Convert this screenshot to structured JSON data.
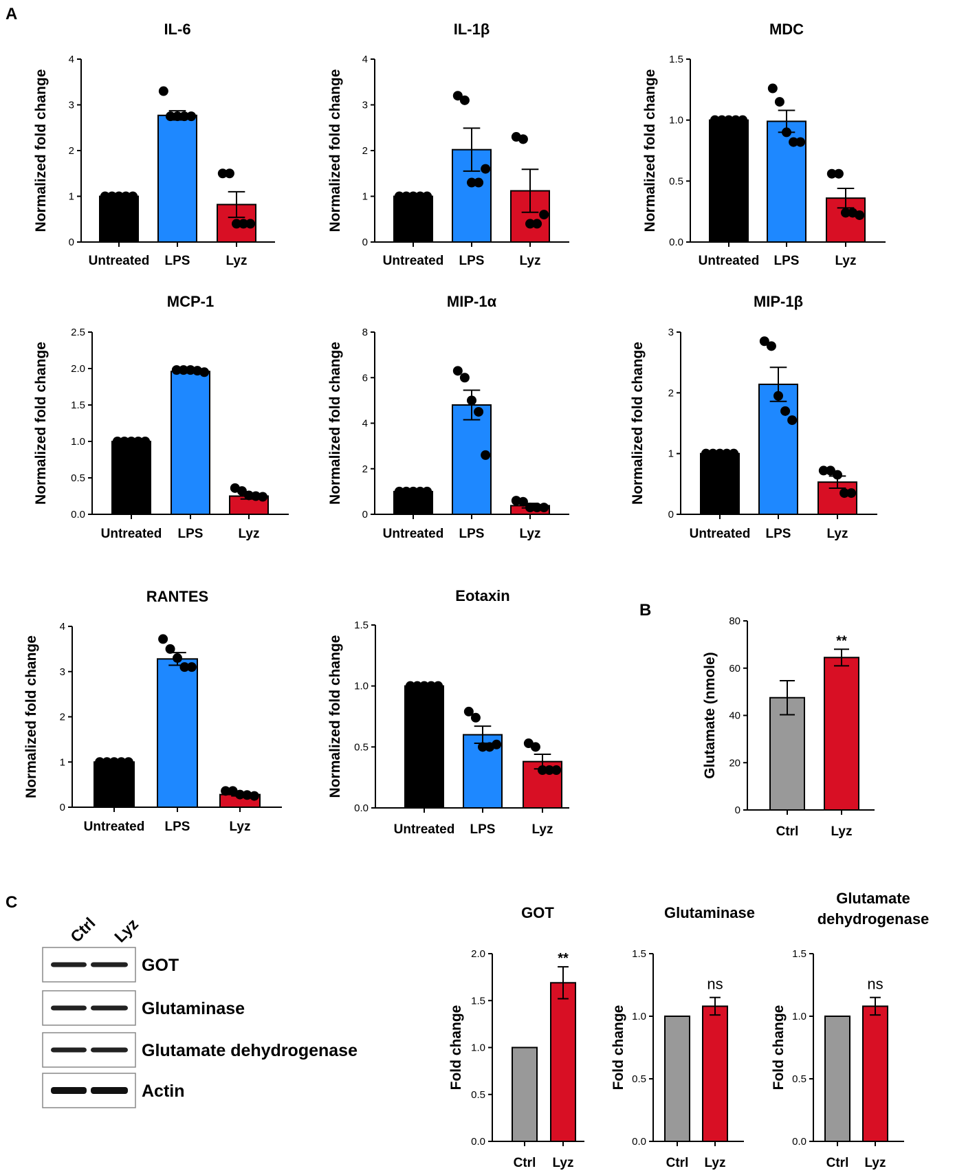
{
  "panel_labels": {
    "a": "A",
    "b": "B",
    "c": "C"
  },
  "colors": {
    "untreated": "#000000",
    "lps": "#1e88ff",
    "lyz": "#d80f24",
    "ctrl": "#999999"
  },
  "chart_data": [
    {
      "type": "bar",
      "panel": "A",
      "title": "IL-6",
      "ylabel": "Normalized fold change",
      "ylim": [
        0,
        4
      ],
      "yticks": [
        "0",
        "1",
        "2",
        "3",
        "4"
      ],
      "categories": [
        "Untreated",
        "LPS",
        "Lyz"
      ],
      "values": [
        1.0,
        2.77,
        0.82
      ],
      "errors": [
        0,
        0.1,
        0.28
      ],
      "points": [
        [
          1,
          1,
          1,
          1,
          1
        ],
        [
          3.3,
          2.75,
          2.75,
          2.75,
          2.75
        ],
        [
          1.5,
          1.5,
          0.4,
          0.4,
          0.4
        ]
      ]
    },
    {
      "type": "bar",
      "panel": "A",
      "title": "IL-1β",
      "ylabel": "Normalized fold change",
      "ylim": [
        0,
        4
      ],
      "yticks": [
        "0",
        "1",
        "2",
        "3",
        "4"
      ],
      "categories": [
        "Untreated",
        "LPS",
        "Lyz"
      ],
      "values": [
        1.0,
        2.02,
        1.12
      ],
      "errors": [
        0,
        0.47,
        0.47
      ],
      "points": [
        [
          1,
          1,
          1,
          1,
          1
        ],
        [
          3.2,
          3.1,
          1.3,
          1.3,
          1.6
        ],
        [
          2.3,
          2.25,
          0.4,
          0.4,
          0.6
        ]
      ]
    },
    {
      "type": "bar",
      "panel": "A",
      "title": "MDC",
      "ylabel": "Normalized fold change",
      "ylim": [
        0,
        1.5
      ],
      "yticks": [
        "0.0",
        "0.5",
        "1.0",
        "1.5"
      ],
      "categories": [
        "Untreated",
        "LPS",
        "Lyz"
      ],
      "values": [
        1.0,
        0.99,
        0.36
      ],
      "errors": [
        0,
        0.09,
        0.08
      ],
      "points": [
        [
          1,
          1,
          1,
          1,
          1
        ],
        [
          1.26,
          1.15,
          0.9,
          0.82,
          0.82
        ],
        [
          0.56,
          0.56,
          0.24,
          0.24,
          0.22
        ]
      ]
    },
    {
      "type": "bar",
      "panel": "A",
      "title": "MCP-1",
      "ylabel": "Normalized fold change",
      "ylim": [
        0,
        2.5
      ],
      "yticks": [
        "0.0",
        "0.5",
        "1.0",
        "1.5",
        "2.0",
        "2.5"
      ],
      "categories": [
        "Untreated",
        "LPS",
        "Lyz"
      ],
      "values": [
        1.0,
        1.96,
        0.25
      ],
      "errors": [
        0,
        0.02,
        0.04
      ],
      "points": [
        [
          1,
          1,
          1,
          1,
          1
        ],
        [
          1.98,
          1.98,
          1.98,
          1.97,
          1.95
        ],
        [
          0.36,
          0.32,
          0.26,
          0.25,
          0.24
        ]
      ]
    },
    {
      "type": "bar",
      "panel": "A",
      "title": "MIP-1α",
      "ylabel": "Normalized fold change",
      "ylim": [
        0,
        8
      ],
      "yticks": [
        "0",
        "2",
        "4",
        "6",
        "8"
      ],
      "categories": [
        "Untreated",
        "LPS",
        "Lyz"
      ],
      "values": [
        1.0,
        4.8,
        0.38
      ],
      "errors": [
        0,
        0.65,
        0.1
      ],
      "points": [
        [
          1,
          1,
          1,
          1,
          1
        ],
        [
          6.3,
          6.0,
          5.0,
          4.5,
          2.6
        ],
        [
          0.6,
          0.55,
          0.3,
          0.3,
          0.3
        ]
      ]
    },
    {
      "type": "bar",
      "panel": "A",
      "title": "MIP-1β",
      "ylabel": "Normalized fold change",
      "ylim": [
        0,
        3
      ],
      "yticks": [
        "0",
        "1",
        "2",
        "3"
      ],
      "categories": [
        "Untreated",
        "LPS",
        "Lyz"
      ],
      "values": [
        1.0,
        2.14,
        0.53
      ],
      "errors": [
        0,
        0.28,
        0.1
      ],
      "points": [
        [
          1,
          1,
          1,
          1,
          1
        ],
        [
          2.85,
          2.77,
          1.95,
          1.7,
          1.55
        ],
        [
          0.72,
          0.72,
          0.65,
          0.35,
          0.35
        ]
      ]
    },
    {
      "type": "bar",
      "panel": "A",
      "title": "RANTES",
      "ylabel": "Normalized fold change",
      "ylim": [
        0,
        4
      ],
      "yticks": [
        "0",
        "1",
        "2",
        "3",
        "4"
      ],
      "categories": [
        "Untreated",
        "LPS",
        "Lyz"
      ],
      "values": [
        1.0,
        3.28,
        0.28
      ],
      "errors": [
        0,
        0.14,
        0.03
      ],
      "points": [
        [
          1,
          1,
          1,
          1,
          1
        ],
        [
          3.72,
          3.5,
          3.3,
          3.1,
          3.1
        ],
        [
          0.36,
          0.36,
          0.28,
          0.27,
          0.25
        ]
      ]
    },
    {
      "type": "bar",
      "panel": "A",
      "title": "Eotaxin",
      "ylabel": "Normalized fold change",
      "ylim": [
        0,
        1.5
      ],
      "yticks": [
        "0.0",
        "0.5",
        "1.0",
        "1.5"
      ],
      "categories": [
        "Untreated",
        "LPS",
        "Lyz"
      ],
      "values": [
        1.0,
        0.6,
        0.38
      ],
      "errors": [
        0,
        0.07,
        0.06
      ],
      "points": [
        [
          1,
          1,
          1,
          1,
          1
        ],
        [
          0.79,
          0.74,
          0.5,
          0.5,
          0.52
        ],
        [
          0.53,
          0.5,
          0.31,
          0.31,
          0.31
        ]
      ]
    },
    {
      "type": "bar",
      "panel": "B",
      "title": "",
      "ylabel": "Glutamate (nmole)",
      "ylim": [
        0,
        80
      ],
      "yticks": [
        "0",
        "20",
        "40",
        "60",
        "80"
      ],
      "categories": [
        "Ctrl",
        "Lyz"
      ],
      "values": [
        47.5,
        64.5
      ],
      "errors": [
        7.2,
        3.5
      ],
      "annotation": "**"
    },
    {
      "type": "bar",
      "panel": "C",
      "title": "GOT",
      "ylabel": "Fold change",
      "ylim": [
        0,
        2.0
      ],
      "yticks": [
        "0.0",
        "0.5",
        "1.0",
        "1.5",
        "2.0"
      ],
      "categories": [
        "Ctrl",
        "Lyz"
      ],
      "values": [
        1.0,
        1.69
      ],
      "errors": [
        0,
        0.17
      ],
      "annotation": "**"
    },
    {
      "type": "bar",
      "panel": "C",
      "title": "Glutaminase",
      "ylabel": "Fold change",
      "ylim": [
        0,
        1.5
      ],
      "yticks": [
        "0.0",
        "0.5",
        "1.0",
        "1.5"
      ],
      "categories": [
        "Ctrl",
        "Lyz"
      ],
      "values": [
        1.0,
        1.08
      ],
      "errors": [
        0,
        0.07
      ],
      "annotation": "ns"
    },
    {
      "type": "bar",
      "panel": "C",
      "title": "Glutamate dehydrogenase",
      "title_lines": [
        "Glutamate",
        "dehydrogenase"
      ],
      "ylabel": "Fold change",
      "ylim": [
        0,
        1.5
      ],
      "yticks": [
        "0.0",
        "0.5",
        "1.0",
        "1.5"
      ],
      "categories": [
        "Ctrl",
        "Lyz"
      ],
      "values": [
        1.0,
        1.08
      ],
      "errors": [
        0,
        0.07
      ],
      "annotation": "ns"
    }
  ],
  "western_blot": {
    "lanes": [
      "Ctrl",
      "Lyz"
    ],
    "proteins": [
      "GOT",
      "Glutaminase",
      "Glutamate dehydrogenase",
      "Actin"
    ]
  }
}
